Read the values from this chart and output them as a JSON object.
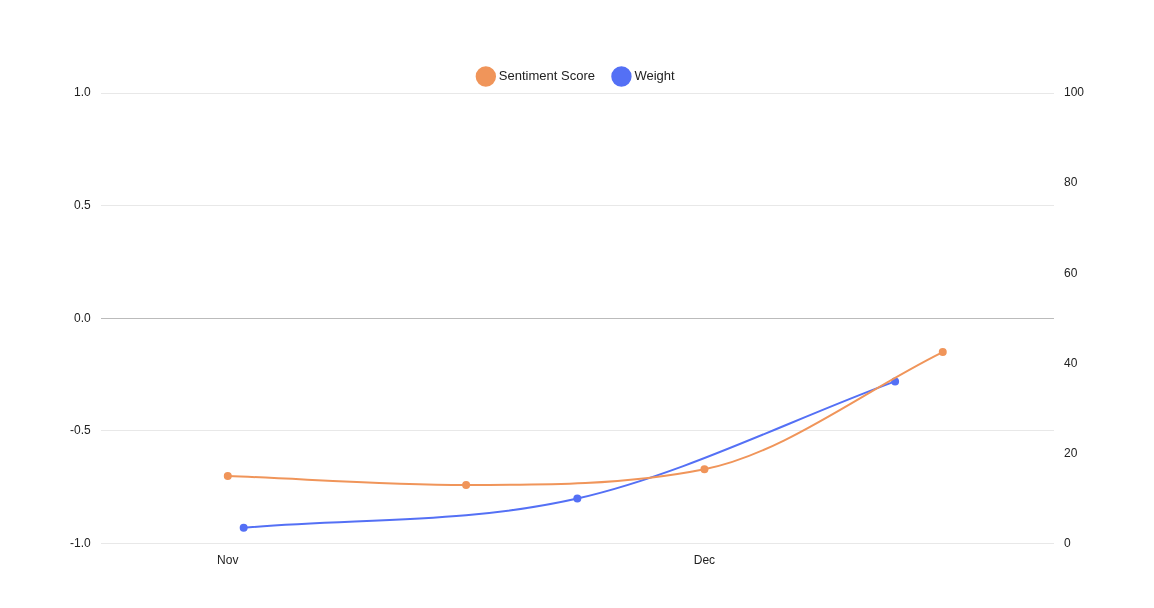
{
  "chart_data": {
    "type": "line",
    "xlim": [
      "--10-24",
      "--12-23"
    ],
    "xticks": [
      {
        "value": "--11-01",
        "label": "Nov"
      },
      {
        "value": "--12-01",
        "label": "Dec"
      }
    ],
    "ylim": [
      -1,
      1
    ],
    "yticks": [
      {
        "value": -1,
        "label": "-1.0"
      },
      {
        "value": -0.5,
        "label": "-0.5"
      },
      {
        "value": 0,
        "label": "0.0"
      },
      {
        "value": 0.5,
        "label": "0.5"
      },
      {
        "value": 1,
        "label": "1.0"
      }
    ],
    "y2lim": [
      0,
      100
    ],
    "y2ticks": [
      0,
      20,
      40,
      60,
      80,
      100
    ],
    "series": [
      {
        "name": "Sentiment Score",
        "color": "#f0955a",
        "x": [
          "--11-01",
          "--11-16",
          "--12-01",
          "--12-16"
        ],
        "values": [
          -0.7,
          -0.74,
          -0.67,
          -0.15
        ]
      },
      {
        "name": "Weight",
        "color": "#5470f5",
        "axis": "y2",
        "x": [
          "--11-02",
          "--11-23",
          "--12-13"
        ],
        "values": [
          3.5,
          10,
          36
        ]
      }
    ],
    "grid": "y",
    "legend": "top",
    "marker": "circle",
    "line_style": "solid"
  }
}
